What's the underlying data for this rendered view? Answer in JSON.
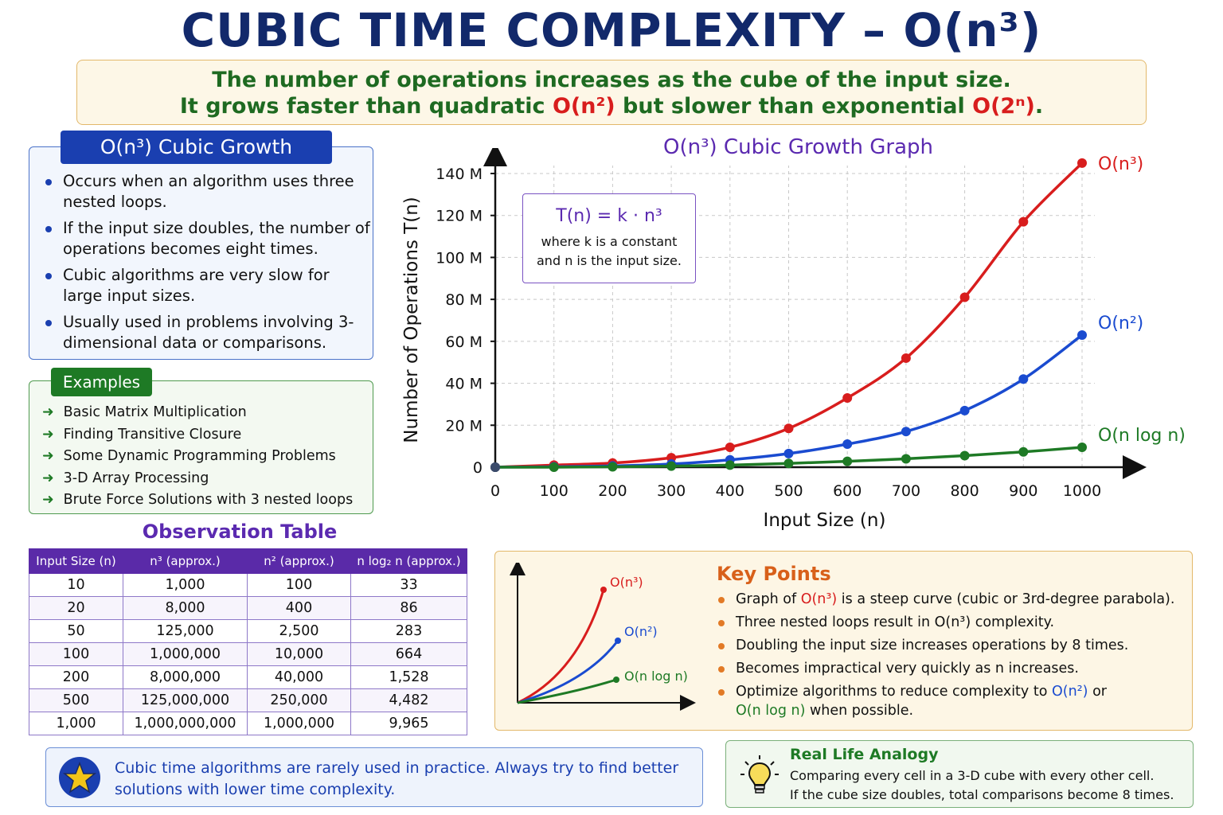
{
  "title": "CUBIC TIME COMPLEXITY – O(n³)",
  "intro": {
    "line1": "The number of operations increases as the cube of the input size.",
    "line2_a": "It grows faster than quadratic ",
    "line2_b": "O(n²)",
    "line2_c": " but slower than exponential ",
    "line2_d": "O(2ⁿ)",
    "line2_e": "."
  },
  "growth": {
    "header": "O(n³) Cubic Growth",
    "items": [
      "Occurs when an algorithm uses three nested loops.",
      "If the input size doubles, the number of operations becomes eight times.",
      "Cubic algorithms are very slow for large input sizes.",
      "Usually used in problems involving 3-dimensional data or comparisons."
    ]
  },
  "examples": {
    "header": "Examples",
    "items": [
      "Basic Matrix Multiplication",
      "Finding Transitive Closure",
      "Some Dynamic Programming Problems",
      "3-D Array Processing",
      "Brute Force Solutions with 3 nested loops"
    ]
  },
  "observation": {
    "title": "Observation Table",
    "headers": [
      "Input Size (n)",
      "n³ (approx.)",
      "n² (approx.)",
      "n log₂ n (approx.)"
    ],
    "rows": [
      [
        "10",
        "1,000",
        "100",
        "33"
      ],
      [
        "20",
        "8,000",
        "400",
        "86"
      ],
      [
        "50",
        "125,000",
        "2,500",
        "283"
      ],
      [
        "100",
        "1,000,000",
        "10,000",
        "664"
      ],
      [
        "200",
        "8,000,000",
        "40,000",
        "1,528"
      ],
      [
        "500",
        "125,000,000",
        "250,000",
        "4,482"
      ],
      [
        "1,000",
        "1,000,000,000",
        "1,000,000",
        "9,965"
      ]
    ]
  },
  "formula": {
    "expr": "T(n) = k · n³",
    "desc1": "where k is a constant",
    "desc2": "and n is the input size."
  },
  "chart_data": {
    "type": "line",
    "title": "O(n³) Cubic Growth Graph",
    "xlabel": "Input Size (n)",
    "ylabel": "Number of Operations T(n)",
    "x": [
      0,
      100,
      200,
      300,
      400,
      500,
      600,
      700,
      800,
      900,
      1000
    ],
    "xlim": [
      0,
      1000
    ],
    "ylim": [
      0,
      140
    ],
    "y_tick_values": [
      0,
      20,
      40,
      60,
      80,
      100,
      120,
      140
    ],
    "y_tick_labels": [
      "0",
      "20 M",
      "40 M",
      "60 M",
      "80 M",
      "100 M",
      "120 M",
      "140 M"
    ],
    "grid": true,
    "series": [
      {
        "name": "O(n³)",
        "color": "#d81d1d",
        "values": [
          0,
          1,
          2,
          4.5,
          9.5,
          18.5,
          33,
          52,
          81,
          117,
          145
        ]
      },
      {
        "name": "O(n²)",
        "color": "#1a4bd0",
        "values": [
          0,
          0.2,
          0.6,
          1.5,
          3.5,
          6.5,
          11,
          17,
          27,
          42,
          63
        ]
      },
      {
        "name": "O(n log n)",
        "color": "#1e7a25",
        "values": [
          0,
          0,
          0.2,
          0.5,
          1,
          1.8,
          2.8,
          4,
          5.5,
          7.3,
          9.5
        ]
      }
    ]
  },
  "key_points": {
    "title": "Key Points",
    "mini_labels": [
      "O(n³)",
      "O(n²)",
      "O(n log n)"
    ],
    "p1_a": "Graph of ",
    "p1_b": "O(n³)",
    "p1_c": " is a steep curve (cubic or 3rd-degree parabola).",
    "p2": "Three nested loops result in O(n³) complexity.",
    "p3": "Doubling the input size increases operations by 8 times.",
    "p4": "Becomes impractical very quickly as n increases.",
    "p5_a": "Optimize algorithms to reduce complexity to ",
    "p5_b": "O(n²)",
    "p5_c": " or",
    "p5_d": "O(n log n)",
    "p5_e": " when possible."
  },
  "note": {
    "line1": "Cubic time algorithms are rarely used in practice. Always try to find better",
    "line2": "solutions with lower time complexity."
  },
  "analogy": {
    "title": "Real Life Analogy",
    "line1": "Comparing every cell in a 3-D cube with every other cell.",
    "line2": "If the cube size doubles, total comparisons become 8 times."
  },
  "icons": {
    "star": "star-icon",
    "bulb": "lightbulb-icon"
  }
}
